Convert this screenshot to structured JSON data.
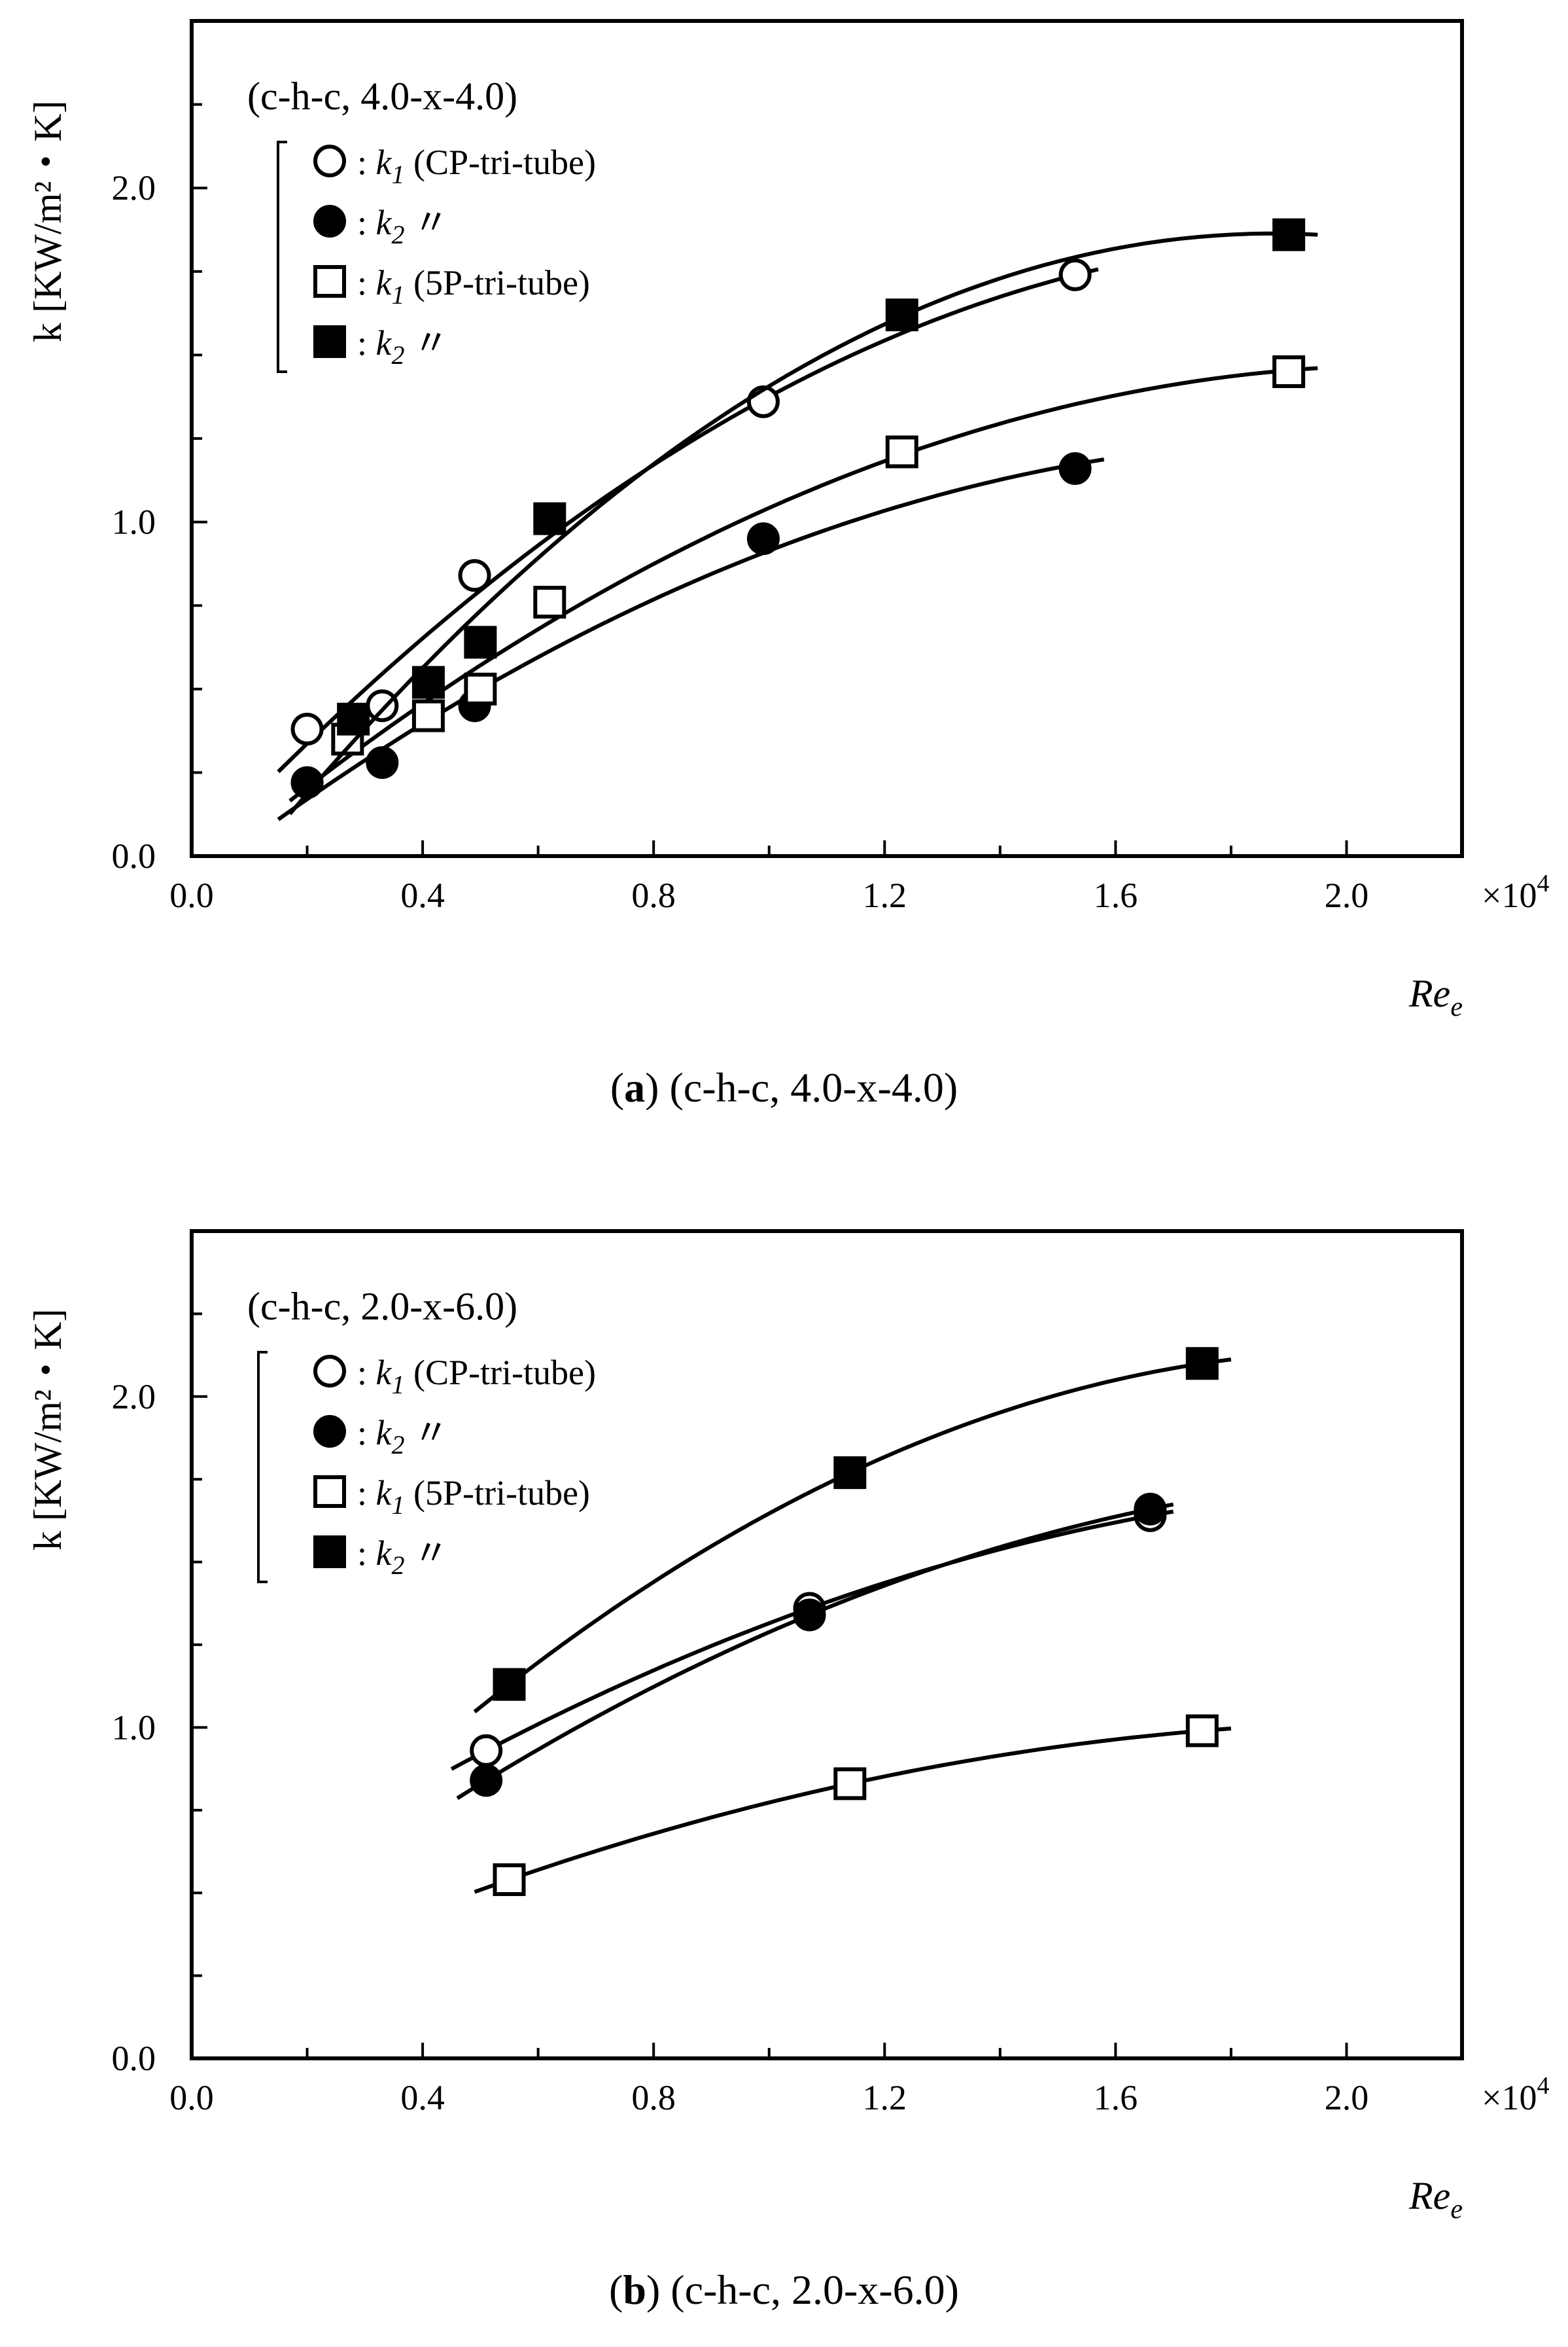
{
  "chart_data": [
    {
      "type": "scatter",
      "panel": "a",
      "title": "(c-h-c, 4.0-x-4.0)",
      "caption_letter": "a",
      "caption_text": " (c-h-c, 4.0-x-4.0)",
      "xlabel": "Re",
      "xlabel_sub": "e",
      "ylabel": "k [KW/m²・K]",
      "x_multiplier": "×10",
      "x_multiplier_exp": "4",
      "xlim": [
        0.0,
        2.2
      ],
      "ylim": [
        0.0,
        2.5
      ],
      "x_ticks": [
        "0.0",
        "0.4",
        "0.8",
        "1.2",
        "1.6",
        "2.0"
      ],
      "y_ticks": [
        "0.0",
        "1.0",
        "2.0"
      ],
      "grid": false,
      "legend_position": "top-left",
      "series": [
        {
          "name": "k1 (CP-tri-tube)",
          "label_main": "k",
          "label_sub": "1",
          "label_rest": " (CP-tri-tube)",
          "marker": "open-circle",
          "x": [
            0.2,
            0.33,
            0.49,
            0.99,
            1.53
          ],
          "values": [
            0.38,
            0.45,
            0.84,
            1.36,
            1.74
          ],
          "fit_range": [
            0.15,
            1.57
          ]
        },
        {
          "name": "k2 (CP-tri-tube)",
          "label_main": "k",
          "label_sub": "2",
          "label_rest": "  〃",
          "marker": "filled-circle",
          "x": [
            0.2,
            0.33,
            0.49,
            0.99,
            1.53
          ],
          "values": [
            0.22,
            0.28,
            0.45,
            0.95,
            1.16
          ],
          "fit_range": [
            0.15,
            1.58
          ]
        },
        {
          "name": "k1 (5P-tri-tube)",
          "label_main": "k",
          "label_sub": "1",
          "label_rest": " (5P-tri-tube)",
          "marker": "open-square",
          "x": [
            0.27,
            0.41,
            0.5,
            0.62,
            1.23,
            1.9
          ],
          "values": [
            0.35,
            0.42,
            0.5,
            0.76,
            1.21,
            1.45
          ],
          "fit_range": [
            0.17,
            1.95
          ]
        },
        {
          "name": "k2 (5P-tri-tube)",
          "label_main": "k",
          "label_sub": "2",
          "label_rest": "  〃",
          "marker": "filled-square",
          "x": [
            0.28,
            0.41,
            0.5,
            0.62,
            1.23,
            1.9
          ],
          "values": [
            0.41,
            0.52,
            0.64,
            1.01,
            1.62,
            1.86
          ],
          "fit_range": [
            0.17,
            1.95
          ]
        }
      ]
    },
    {
      "type": "scatter",
      "panel": "b",
      "title": "(c-h-c, 2.0-x-6.0)",
      "caption_letter": "b",
      "caption_text": " (c-h-c, 2.0-x-6.0)",
      "xlabel": "Re",
      "xlabel_sub": "e",
      "ylabel": "k [KW/m²・K]",
      "x_multiplier": "×10",
      "x_multiplier_exp": "4",
      "xlim": [
        0.0,
        2.2
      ],
      "ylim": [
        0.0,
        2.5
      ],
      "x_ticks": [
        "0.0",
        "0.4",
        "0.8",
        "1.2",
        "1.6",
        "2.0"
      ],
      "y_ticks": [
        "0.0",
        "1.0",
        "2.0"
      ],
      "grid": false,
      "legend_position": "top-left",
      "series": [
        {
          "name": "k1 (CP-tri-tube)",
          "label_main": "k",
          "label_sub": "1",
          "label_rest": " (CP-tri-tube)",
          "marker": "open-circle",
          "x": [
            0.51,
            1.07,
            1.66
          ],
          "values": [
            0.93,
            1.36,
            1.64
          ],
          "fit_range": [
            0.45,
            1.7
          ]
        },
        {
          "name": "k2 (CP-tri-tube)",
          "label_main": "k",
          "label_sub": "2",
          "label_rest": "  〃",
          "marker": "filled-circle",
          "x": [
            0.51,
            1.07,
            1.66
          ],
          "values": [
            0.84,
            1.34,
            1.66
          ],
          "fit_range": [
            0.46,
            1.7
          ]
        },
        {
          "name": "k1 (5P-tri-tube)",
          "label_main": "k",
          "label_sub": "1",
          "label_rest": " (5P-tri-tube)",
          "marker": "open-square",
          "x": [
            0.55,
            1.14,
            1.75
          ],
          "values": [
            0.54,
            0.83,
            0.99
          ],
          "fit_range": [
            0.49,
            1.8
          ]
        },
        {
          "name": "k2 (5P-tri-tube)",
          "label_main": "k",
          "label_sub": "2",
          "label_rest": "  〃",
          "marker": "filled-square",
          "x": [
            0.55,
            1.14,
            1.75
          ],
          "values": [
            1.13,
            1.77,
            2.1
          ],
          "fit_range": [
            0.49,
            1.8
          ]
        }
      ]
    }
  ]
}
